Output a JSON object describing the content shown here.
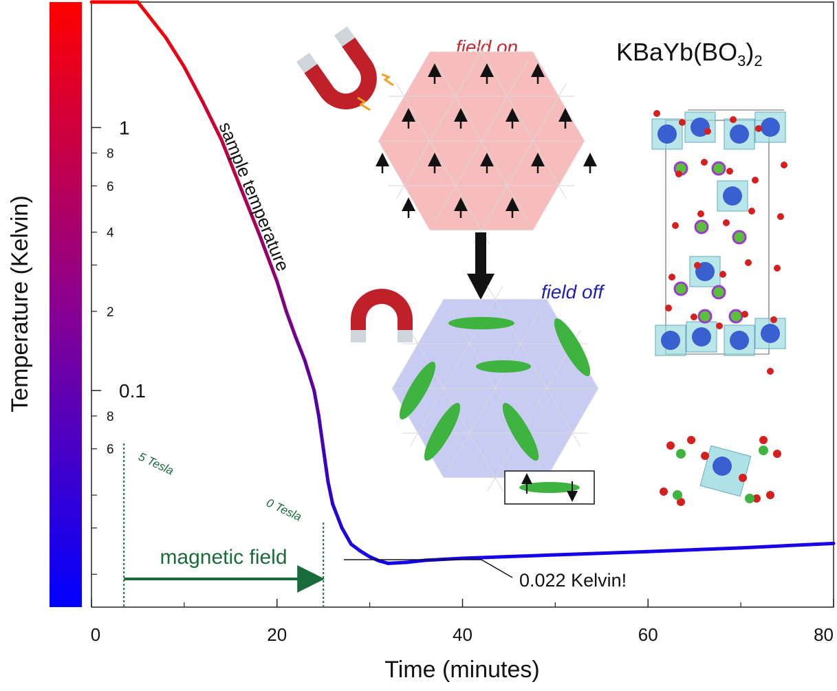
{
  "chart_data": {
    "type": "line",
    "xlabel": "Time (minutes)",
    "ylabel": "Temperature (Kelvin)",
    "xlim": [
      0,
      80
    ],
    "ylim": [
      0.015,
      3.0
    ],
    "y_scale": "log",
    "x_ticks": [
      0,
      20,
      40,
      60,
      80
    ],
    "y_major_ticks": [
      {
        "value": 1,
        "label": "1"
      },
      {
        "value": 0.1,
        "label": "0.1"
      }
    ],
    "y_minor_ticks": [
      {
        "value": 0.8,
        "label": "8"
      },
      {
        "value": 0.6,
        "label": "6"
      },
      {
        "value": 0.4,
        "label": "4"
      },
      {
        "value": 0.3,
        "label": ""
      },
      {
        "value": 0.2,
        "label": "2"
      },
      {
        "value": 0.08,
        "label": "8"
      },
      {
        "value": 0.06,
        "label": "6"
      },
      {
        "value": 0.04,
        "label": ""
      },
      {
        "value": 0.03,
        "label": ""
      },
      {
        "value": 0.02,
        "label": ""
      }
    ],
    "series": [
      {
        "color_hot": "#ff0000",
        "color_cold": "#0000ff",
        "x": [
          0,
          5,
          8,
          10,
          12,
          14,
          16,
          18,
          20,
          21,
          22,
          23,
          24,
          24.5,
          25,
          25.5,
          26,
          27,
          28,
          29,
          30,
          31,
          32,
          34,
          36,
          40,
          50,
          60,
          70,
          80
        ],
        "y": [
          3.0,
          3.0,
          2.2,
          1.7,
          1.25,
          0.9,
          0.6,
          0.4,
          0.26,
          0.2,
          0.16,
          0.13,
          0.1,
          0.08,
          0.06,
          0.045,
          0.037,
          0.03,
          0.026,
          0.0245,
          0.0233,
          0.0225,
          0.022,
          0.0222,
          0.0226,
          0.023,
          0.0237,
          0.0244,
          0.0252,
          0.0262
        ]
      }
    ],
    "curve_label": "sample temperature",
    "field_on_minute": 3.5,
    "field_off_minute": 25,
    "annotations": {
      "tesla_5": "5 Tesla",
      "tesla_0": "0 Tesla",
      "field_arrow": "magnetic field",
      "min_temp": "0.022 Kelvin!"
    },
    "colorbar": {
      "top": "#ff0000",
      "bottom": "#0000ff"
    }
  },
  "inset": {
    "compound": "KBaYb(BO",
    "compound_sub1": "3",
    "compound_close": ")",
    "compound_sub2": "2",
    "field_on_label": "field on",
    "field_off_label": "field off",
    "colors": {
      "field_on_text": "#c8282e",
      "field_off_text": "#1f1fb8",
      "lattice_on": "#f7bcbc",
      "lattice_off": "#c9ccf2",
      "singlet": "#3fb33f",
      "magnet": "#c0202a",
      "annotation_green": "#1a6b3a"
    }
  }
}
